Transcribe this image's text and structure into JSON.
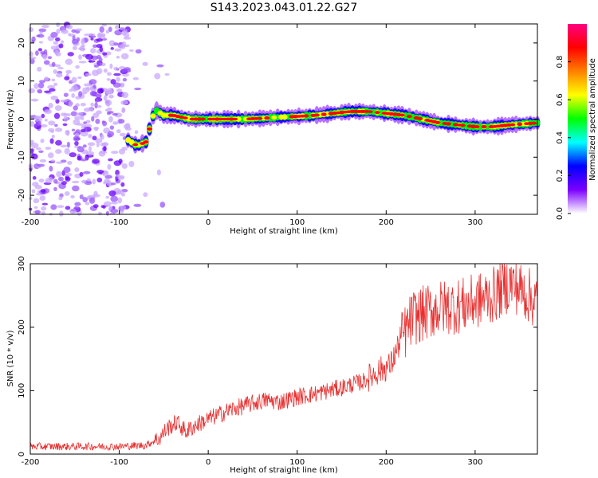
{
  "title": "S143.2023.043.01.22.G27",
  "chart_data": [
    {
      "type": "heatmap",
      "xlabel": "Height of straight line (km)",
      "ylabel": "Frequency (Hz)",
      "xlim": [
        -200,
        370
      ],
      "ylim": [
        -25,
        25
      ],
      "xticks": [
        -200,
        -100,
        0,
        100,
        200,
        300
      ],
      "yticks": [
        -20,
        -10,
        0,
        10,
        20
      ],
      "colorbar": {
        "label": "Normalized spectral amplitude",
        "range": [
          0,
          1
        ],
        "ticks": [
          "0.0",
          "0.2",
          "0.4",
          "0.6",
          "0.8"
        ],
        "colors": [
          "#ffffff",
          "#7b00ff",
          "#0000ff",
          "#00ffff",
          "#00ff00",
          "#ffff00",
          "#ff8000",
          "#ff0000",
          "#ff0080"
        ]
      },
      "ridge": {
        "x": [
          -90,
          -80,
          -70,
          -60,
          -50,
          -40,
          -30,
          -20,
          0,
          20,
          40,
          60,
          80,
          100,
          120,
          140,
          160,
          180,
          200,
          220,
          240,
          260,
          280,
          300,
          320,
          340,
          370
        ],
        "y": [
          -5.5,
          -7,
          -6,
          2.5,
          1,
          1,
          0.5,
          0,
          0,
          0,
          0,
          0.2,
          0.5,
          0.7,
          1,
          1.5,
          2,
          2,
          1.5,
          1,
          0,
          -1,
          -1.5,
          -2,
          -2,
          -1.5,
          -1
        ]
      }
    },
    {
      "type": "line",
      "xlabel": "Height of straight line (km)",
      "ylabel": "SNR (10 * v/v)",
      "xlim": [
        -200,
        370
      ],
      "ylim": [
        0,
        300
      ],
      "xticks": [
        -200,
        -100,
        0,
        100,
        200,
        300
      ],
      "yticks": [
        0,
        100,
        200,
        300
      ],
      "color": "#e83030",
      "series": [
        {
          "x": [
            -200,
            -150,
            -100,
            -70,
            -55,
            -45,
            -35,
            -25,
            -15,
            0,
            25,
            50,
            65,
            80,
            100,
            120,
            150,
            175,
            190,
            205,
            215,
            230,
            260,
            290,
            320,
            340,
            355,
            370
          ],
          "y": [
            12,
            12,
            12,
            14,
            25,
            42,
            50,
            35,
            45,
            55,
            70,
            80,
            85,
            82,
            90,
            95,
            105,
            115,
            130,
            140,
            175,
            215,
            230,
            235,
            250,
            270,
            255,
            240
          ]
        }
      ]
    }
  ]
}
